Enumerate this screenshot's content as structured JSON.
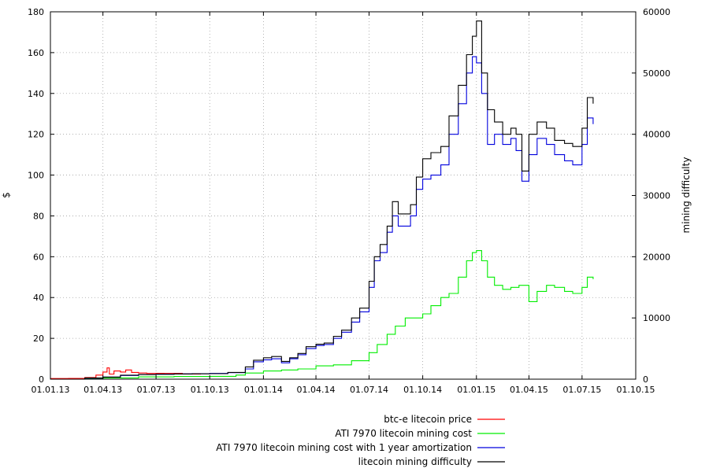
{
  "chart_data": {
    "type": "line",
    "title": "",
    "xlabel": "",
    "ylabel": "$",
    "y2label": "mining difficulty",
    "x_ticks": [
      "01.01.13",
      "01.04.13",
      "01.07.13",
      "01.10.13",
      "01.01.14",
      "01.04.14",
      "01.07.14",
      "01.10.14",
      "01.01.15",
      "01.04.15",
      "01.07.15",
      "01.10.15"
    ],
    "xlim": [
      "2013-01-01",
      "2015-10-01"
    ],
    "ylim": [
      0,
      180
    ],
    "y_ticks": [
      "0",
      "20",
      "40",
      "60",
      "80",
      "100",
      "120",
      "140",
      "160",
      "180"
    ],
    "y2lim": [
      0,
      60000
    ],
    "y2_ticks": [
      "0",
      "10000",
      "20000",
      "30000",
      "40000",
      "50000",
      "60000"
    ],
    "grid": true,
    "legend_position": "bottom-right",
    "series": [
      {
        "name": "btc-e litecoin price",
        "color": "#ff0000",
        "axis": "y",
        "points": [
          [
            "2013-01-01",
            0.3
          ],
          [
            "2013-02-01",
            0.4
          ],
          [
            "2013-03-01",
            0.8
          ],
          [
            "2013-03-20",
            2.0
          ],
          [
            "2013-04-01",
            3.5
          ],
          [
            "2013-04-08",
            5.5
          ],
          [
            "2013-04-12",
            2.5
          ],
          [
            "2013-04-20",
            4.0
          ],
          [
            "2013-05-01",
            3.5
          ],
          [
            "2013-05-10",
            4.5
          ],
          [
            "2013-05-20",
            3.3
          ],
          [
            "2013-06-01",
            3.0
          ],
          [
            "2013-06-15",
            2.8
          ],
          [
            "2013-07-01",
            2.9
          ],
          [
            "2013-07-15",
            2.8
          ],
          [
            "2013-08-01",
            2.9
          ],
          [
            "2013-08-15",
            2.6
          ],
          [
            "2013-09-01",
            2.5
          ],
          [
            "2013-09-15",
            2.7
          ],
          [
            "2013-10-01",
            2.5
          ]
        ]
      },
      {
        "name": "ATI 7970 litecoin mining cost",
        "color": "#00ee00",
        "axis": "y",
        "points": [
          [
            "2013-01-01",
            0.0
          ],
          [
            "2013-03-01",
            0.3
          ],
          [
            "2013-04-01",
            0.6
          ],
          [
            "2013-06-01",
            1.1
          ],
          [
            "2013-08-01",
            1.3
          ],
          [
            "2013-10-01",
            1.4
          ],
          [
            "2013-11-15",
            2.0
          ],
          [
            "2013-12-01",
            3.0
          ],
          [
            "2014-01-01",
            4.0
          ],
          [
            "2014-02-01",
            4.5
          ],
          [
            "2014-03-01",
            5.0
          ],
          [
            "2014-04-01",
            6.5
          ],
          [
            "2014-05-01",
            7.0
          ],
          [
            "2014-06-01",
            9.0
          ],
          [
            "2014-07-01",
            13.0
          ],
          [
            "2014-07-15",
            17.0
          ],
          [
            "2014-08-01",
            22.0
          ],
          [
            "2014-08-15",
            26.0
          ],
          [
            "2014-09-01",
            30.0
          ],
          [
            "2014-10-01",
            32.0
          ],
          [
            "2014-10-15",
            36.0
          ],
          [
            "2014-11-01",
            40.0
          ],
          [
            "2014-11-15",
            42.0
          ],
          [
            "2014-12-01",
            50.0
          ],
          [
            "2014-12-15",
            58.0
          ],
          [
            "2014-12-25",
            62.0
          ],
          [
            "2015-01-01",
            63.0
          ],
          [
            "2015-01-10",
            58.0
          ],
          [
            "2015-01-20",
            50.0
          ],
          [
            "2015-02-01",
            46.0
          ],
          [
            "2015-02-15",
            44.0
          ],
          [
            "2015-03-01",
            45.0
          ],
          [
            "2015-03-15",
            46.0
          ],
          [
            "2015-04-01",
            38.0
          ],
          [
            "2015-04-15",
            43.0
          ],
          [
            "2015-05-01",
            46.0
          ],
          [
            "2015-05-15",
            45.0
          ],
          [
            "2015-06-01",
            43.0
          ],
          [
            "2015-06-15",
            42.0
          ],
          [
            "2015-07-01",
            45.0
          ],
          [
            "2015-07-10",
            50.0
          ],
          [
            "2015-07-20",
            49.0
          ]
        ]
      },
      {
        "name": "ATI 7970 litecoin mining cost with 1 year amortization",
        "color": "#0000dd",
        "axis": "y",
        "points": [
          [
            "2013-01-01",
            0.0
          ],
          [
            "2013-03-01",
            0.5
          ],
          [
            "2013-04-01",
            1.0
          ],
          [
            "2013-05-01",
            1.8
          ],
          [
            "2013-06-01",
            2.3
          ],
          [
            "2013-07-01",
            2.5
          ],
          [
            "2013-08-01",
            2.6
          ],
          [
            "2013-09-01",
            2.7
          ],
          [
            "2013-10-01",
            2.8
          ],
          [
            "2013-11-01",
            3.2
          ],
          [
            "2013-12-01",
            5.0
          ],
          [
            "2013-12-15",
            8.5
          ],
          [
            "2014-01-01",
            9.5
          ],
          [
            "2014-01-15",
            10.0
          ],
          [
            "2014-02-01",
            8.0
          ],
          [
            "2014-02-15",
            10.0
          ],
          [
            "2014-03-01",
            12.0
          ],
          [
            "2014-03-15",
            15.0
          ],
          [
            "2014-04-01",
            16.5
          ],
          [
            "2014-04-15",
            17.0
          ],
          [
            "2014-05-01",
            20.0
          ],
          [
            "2014-05-15",
            23.0
          ],
          [
            "2014-06-01",
            28.0
          ],
          [
            "2014-06-15",
            33.0
          ],
          [
            "2014-07-01",
            45.0
          ],
          [
            "2014-07-10",
            58.0
          ],
          [
            "2014-07-20",
            62.0
          ],
          [
            "2014-08-01",
            72.0
          ],
          [
            "2014-08-10",
            80.0
          ],
          [
            "2014-08-20",
            75.0
          ],
          [
            "2014-09-01",
            75.0
          ],
          [
            "2014-09-10",
            80.0
          ],
          [
            "2014-09-20",
            93.0
          ],
          [
            "2014-10-01",
            98.0
          ],
          [
            "2014-10-15",
            100.0
          ],
          [
            "2014-11-01",
            105.0
          ],
          [
            "2014-11-15",
            120.0
          ],
          [
            "2014-12-01",
            135.0
          ],
          [
            "2014-12-15",
            150.0
          ],
          [
            "2014-12-25",
            158.0
          ],
          [
            "2015-01-01",
            155.0
          ],
          [
            "2015-01-10",
            140.0
          ],
          [
            "2015-01-20",
            115.0
          ],
          [
            "2015-02-01",
            120.0
          ],
          [
            "2015-02-15",
            115.0
          ],
          [
            "2015-03-01",
            118.0
          ],
          [
            "2015-03-10",
            112.0
          ],
          [
            "2015-03-20",
            97.0
          ],
          [
            "2015-04-01",
            110.0
          ],
          [
            "2015-04-15",
            118.0
          ],
          [
            "2015-05-01",
            115.0
          ],
          [
            "2015-05-15",
            110.0
          ],
          [
            "2015-06-01",
            107.0
          ],
          [
            "2015-06-15",
            105.0
          ],
          [
            "2015-07-01",
            115.0
          ],
          [
            "2015-07-10",
            128.0
          ],
          [
            "2015-07-20",
            125.0
          ]
        ]
      },
      {
        "name": "litecoin mining difficulty",
        "color": "#000000",
        "axis": "y2",
        "points": [
          [
            "2013-01-01",
            0
          ],
          [
            "2013-03-01",
            200
          ],
          [
            "2013-04-01",
            350
          ],
          [
            "2013-05-01",
            650
          ],
          [
            "2013-06-01",
            750
          ],
          [
            "2013-07-01",
            800
          ],
          [
            "2013-08-01",
            850
          ],
          [
            "2013-09-01",
            880
          ],
          [
            "2013-10-01",
            900
          ],
          [
            "2013-11-01",
            1100
          ],
          [
            "2013-12-01",
            2000
          ],
          [
            "2013-12-15",
            3100
          ],
          [
            "2014-01-01",
            3500
          ],
          [
            "2014-01-15",
            3700
          ],
          [
            "2014-02-01",
            2900
          ],
          [
            "2014-02-15",
            3500
          ],
          [
            "2014-03-01",
            4200
          ],
          [
            "2014-03-15",
            5300
          ],
          [
            "2014-04-01",
            5700
          ],
          [
            "2014-04-15",
            5900
          ],
          [
            "2014-05-01",
            7000
          ],
          [
            "2014-05-15",
            8000
          ],
          [
            "2014-06-01",
            10000
          ],
          [
            "2014-06-15",
            11600
          ],
          [
            "2014-07-01",
            16000
          ],
          [
            "2014-07-10",
            20000
          ],
          [
            "2014-07-20",
            22000
          ],
          [
            "2014-08-01",
            25000
          ],
          [
            "2014-08-10",
            29000
          ],
          [
            "2014-08-20",
            27000
          ],
          [
            "2014-09-01",
            27000
          ],
          [
            "2014-09-10",
            28500
          ],
          [
            "2014-09-20",
            33000
          ],
          [
            "2014-10-01",
            36000
          ],
          [
            "2014-10-15",
            37000
          ],
          [
            "2014-11-01",
            38000
          ],
          [
            "2014-11-15",
            43000
          ],
          [
            "2014-12-01",
            48000
          ],
          [
            "2014-12-15",
            53000
          ],
          [
            "2014-12-25",
            56000
          ],
          [
            "2015-01-01",
            58500
          ],
          [
            "2015-01-10",
            50000
          ],
          [
            "2015-01-20",
            44000
          ],
          [
            "2015-02-01",
            42000
          ],
          [
            "2015-02-15",
            40000
          ],
          [
            "2015-03-01",
            41000
          ],
          [
            "2015-03-10",
            40000
          ],
          [
            "2015-03-20",
            34000
          ],
          [
            "2015-04-01",
            40000
          ],
          [
            "2015-04-15",
            42000
          ],
          [
            "2015-05-01",
            41000
          ],
          [
            "2015-05-15",
            39000
          ],
          [
            "2015-06-01",
            38500
          ],
          [
            "2015-06-15",
            38000
          ],
          [
            "2015-07-01",
            41000
          ],
          [
            "2015-07-10",
            46000
          ],
          [
            "2015-07-20",
            45000
          ]
        ]
      }
    ]
  }
}
